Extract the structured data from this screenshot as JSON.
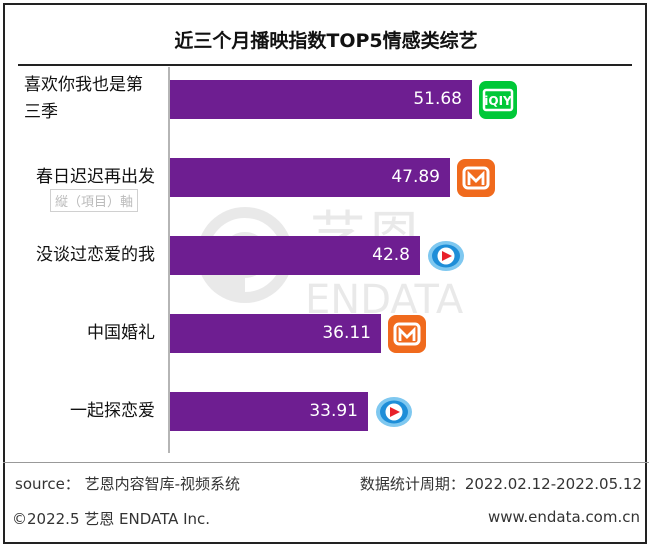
{
  "chart_data": {
    "type": "bar",
    "orientation": "horizontal",
    "title": "近三个月播映指数TOP5情感类综艺",
    "categories": [
      "喜欢你我也是第三季",
      "春日迟迟再出发",
      "没谈过恋爱的我",
      "中国婚礼",
      "一起探恋爱"
    ],
    "values": [
      51.68,
      47.89,
      42.8,
      36.11,
      33.91
    ],
    "value_labels": [
      "51.68",
      "47.89",
      "42.8",
      "36.11",
      "33.91"
    ],
    "platform_icons": [
      "iqiyi-logo",
      "mango-tv-logo",
      "tencent-video-logo",
      "mango-tv-logo",
      "tencent-video-logo"
    ],
    "bar_color": "#6e1e91",
    "xlim": [
      0,
      60
    ],
    "grid": false,
    "legend": "none"
  },
  "axis_watermark": "縦（項目）軸",
  "watermark": {
    "cn": "艺恩",
    "en": "ENDATA"
  },
  "footer": {
    "source": "source：   艺恩内容智库-视频系统",
    "period": "数据统计周期：2022.02.12-2022.05.12",
    "copyright": "©2022.5 艺恩 ENDATA Inc.",
    "website": "www.endata.com.cn"
  },
  "colors": {
    "bar": "#6e1e91",
    "iqiyi": "#00c838",
    "mango": "#f06a1d",
    "tencent": "#1e8ed8"
  }
}
